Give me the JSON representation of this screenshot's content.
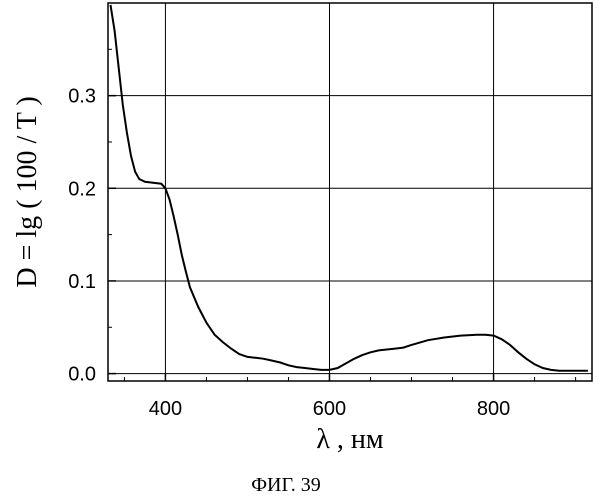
{
  "chart_data": {
    "type": "line",
    "xlabel": "λ , нм",
    "ylabel": "D = lg ( 100 / T )",
    "xlim": [
      330,
      920
    ],
    "ylim": [
      -0.008,
      0.4
    ],
    "xticks": [
      400,
      600,
      800
    ],
    "yticks": [
      0.0,
      0.1,
      0.2,
      0.3
    ],
    "xtick_labels": [
      "400",
      "600",
      "800"
    ],
    "ytick_labels": [
      "0.0",
      "0.1",
      "0.2",
      "0.3"
    ],
    "grid": true,
    "series": [
      {
        "x": [
          333,
          338,
          343,
          348,
          353,
          358,
          363,
          368,
          375,
          385,
          395,
          400,
          405,
          410,
          415,
          420,
          425,
          430,
          440,
          450,
          460,
          470,
          480,
          490,
          500,
          510,
          520,
          530,
          540,
          550,
          560,
          570,
          580,
          590,
          600,
          610,
          620,
          630,
          640,
          650,
          660,
          670,
          680,
          690,
          700,
          720,
          740,
          760,
          780,
          790,
          800,
          810,
          820,
          830,
          840,
          850,
          860,
          870,
          880,
          900,
          915
        ],
        "y": [
          0.398,
          0.37,
          0.33,
          0.29,
          0.26,
          0.235,
          0.218,
          0.21,
          0.207,
          0.206,
          0.205,
          0.2,
          0.188,
          0.17,
          0.15,
          0.128,
          0.11,
          0.093,
          0.072,
          0.055,
          0.042,
          0.034,
          0.027,
          0.021,
          0.018,
          0.017,
          0.016,
          0.014,
          0.012,
          0.009,
          0.007,
          0.006,
          0.005,
          0.004,
          0.004,
          0.006,
          0.011,
          0.016,
          0.02,
          0.023,
          0.025,
          0.026,
          0.027,
          0.028,
          0.031,
          0.036,
          0.039,
          0.041,
          0.042,
          0.042,
          0.041,
          0.037,
          0.031,
          0.023,
          0.016,
          0.01,
          0.006,
          0.004,
          0.003,
          0.003,
          0.003
        ]
      }
    ]
  },
  "caption": "ФИГ. 39"
}
